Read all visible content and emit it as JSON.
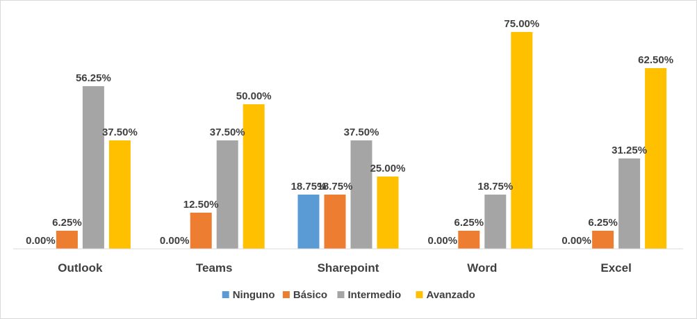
{
  "chart_data": {
    "type": "bar",
    "categories": [
      "Outlook",
      "Teams",
      "Sharepoint",
      "Word",
      "Excel"
    ],
    "series": [
      {
        "name": "Ninguno",
        "color": "#5b9bd5",
        "values": [
          0,
          0,
          18.75,
          0,
          0
        ],
        "labels": [
          "0.00%",
          "0.00%",
          "18.75%",
          "0.00%",
          "0.00%"
        ]
      },
      {
        "name": "Básico",
        "color": "#ed7d31",
        "values": [
          6.25,
          12.5,
          18.75,
          6.25,
          6.25
        ],
        "labels": [
          "6.25%",
          "12.50%",
          "18.75%",
          "6.25%",
          "6.25%"
        ]
      },
      {
        "name": "Intermedio",
        "color": "#a5a5a5",
        "values": [
          56.25,
          37.5,
          37.5,
          18.75,
          31.25
        ],
        "labels": [
          "56.25%",
          "37.50%",
          "37.50%",
          "18.75%",
          "31.25%"
        ]
      },
      {
        "name": "Avanzado",
        "color": "#ffc000",
        "values": [
          37.5,
          50,
          25,
          75,
          62.5
        ],
        "labels": [
          "37.50%",
          "50.00%",
          "25.00%",
          "75.00%",
          "62.50%"
        ]
      }
    ],
    "ylim": [
      0,
      75
    ],
    "grid": false,
    "legend_position": "bottom",
    "title": "",
    "xlabel": "",
    "ylabel": ""
  }
}
